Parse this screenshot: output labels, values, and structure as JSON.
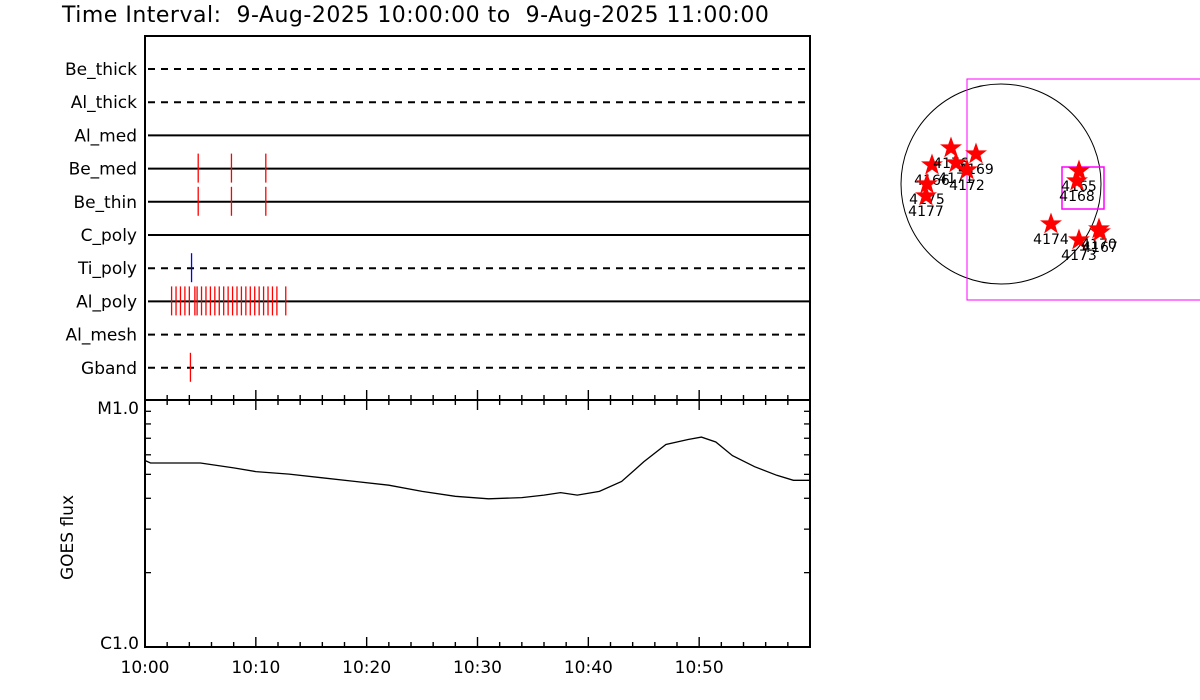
{
  "title": "Time Interval:  9-Aug-2025 10:00:00 to  9-Aug-2025 11:00:00",
  "colors": {
    "axis": "#000000",
    "event_red": "#ff0000",
    "event_blue": "#0000ff",
    "fov_box": "#ff00ff",
    "star": "#ff0000"
  },
  "chart_data": [
    {
      "type": "event-timeline",
      "x_tick_labels": [
        "10:00",
        "10:10",
        "10:20",
        "10:30",
        "10:40",
        "10:50"
      ],
      "x_range_minutes": [
        0,
        60
      ],
      "rows": [
        {
          "name": "Be_thick",
          "line": "dashed",
          "events": []
        },
        {
          "name": "Al_thick",
          "line": "dashed",
          "events": []
        },
        {
          "name": "Al_med",
          "line": "solid",
          "events": []
        },
        {
          "name": "Be_med",
          "line": "solid",
          "events": [
            {
              "t": 4.8,
              "color": "red"
            },
            {
              "t": 7.8,
              "color": "red"
            },
            {
              "t": 10.9,
              "color": "red"
            }
          ]
        },
        {
          "name": "Be_thin",
          "line": "solid",
          "events": [
            {
              "t": 4.8,
              "color": "red"
            },
            {
              "t": 7.8,
              "color": "red"
            },
            {
              "t": 10.9,
              "color": "red"
            }
          ]
        },
        {
          "name": "C_poly",
          "line": "solid",
          "events": []
        },
        {
          "name": "Ti_poly",
          "line": "dashed",
          "events": [
            {
              "t": 4.2,
              "color": "blue"
            }
          ]
        },
        {
          "name": "Al_poly",
          "line": "solid",
          "events": [
            {
              "t": 2.4,
              "color": "red"
            },
            {
              "t": 2.8,
              "color": "red"
            },
            {
              "t": 3.2,
              "color": "red"
            },
            {
              "t": 3.6,
              "color": "red"
            },
            {
              "t": 4.0,
              "color": "red"
            },
            {
              "t": 4.5,
              "color": "red"
            },
            {
              "t": 4.7,
              "color": "red"
            },
            {
              "t": 5.1,
              "color": "red"
            },
            {
              "t": 5.5,
              "color": "red"
            },
            {
              "t": 5.9,
              "color": "red"
            },
            {
              "t": 6.3,
              "color": "red"
            },
            {
              "t": 6.7,
              "color": "red"
            },
            {
              "t": 7.1,
              "color": "red"
            },
            {
              "t": 7.5,
              "color": "red"
            },
            {
              "t": 7.9,
              "color": "red"
            },
            {
              "t": 8.3,
              "color": "red"
            },
            {
              "t": 8.7,
              "color": "red"
            },
            {
              "t": 9.1,
              "color": "red"
            },
            {
              "t": 9.5,
              "color": "red"
            },
            {
              "t": 9.9,
              "color": "red"
            },
            {
              "t": 10.3,
              "color": "red"
            },
            {
              "t": 10.7,
              "color": "red"
            },
            {
              "t": 11.1,
              "color": "red"
            },
            {
              "t": 11.5,
              "color": "red"
            },
            {
              "t": 11.9,
              "color": "red"
            },
            {
              "t": 12.7,
              "color": "red"
            }
          ]
        },
        {
          "name": "Al_mesh",
          "line": "dashed",
          "events": []
        },
        {
          "name": "Gband",
          "line": "dashed",
          "events": [
            {
              "t": 4.1,
              "color": "red"
            }
          ]
        }
      ]
    },
    {
      "type": "line",
      "ylabel": "GOES flux",
      "y_tick_labels": [
        "M1.0",
        "C1.0"
      ],
      "y_scale": "log",
      "y_range_log10_wm2": [
        -6,
        -5
      ],
      "x_tick_labels": [
        "10:00",
        "10:10",
        "10:20",
        "10:30",
        "10:40",
        "10:50"
      ],
      "x_range_minutes": [
        0,
        60
      ],
      "series": [
        {
          "points": [
            [
              0,
              -5.245
            ],
            [
              0.5,
              -5.255
            ],
            [
              5,
              -5.255
            ],
            [
              8,
              -5.275
            ],
            [
              10,
              -5.29
            ],
            [
              13,
              -5.3
            ],
            [
              16,
              -5.315
            ],
            [
              19,
              -5.33
            ],
            [
              22,
              -5.345
            ],
            [
              25,
              -5.37
            ],
            [
              28,
              -5.39
            ],
            [
              31,
              -5.4
            ],
            [
              34,
              -5.395
            ],
            [
              36,
              -5.385
            ],
            [
              37.5,
              -5.375
            ],
            [
              39,
              -5.385
            ],
            [
              41,
              -5.37
            ],
            [
              43,
              -5.33
            ],
            [
              45,
              -5.25
            ],
            [
              47,
              -5.18
            ],
            [
              49,
              -5.16
            ],
            [
              50.2,
              -5.15
            ],
            [
              51.5,
              -5.17
            ],
            [
              53,
              -5.225
            ],
            [
              55,
              -5.27
            ],
            [
              57,
              -5.305
            ],
            [
              58.5,
              -5.325
            ],
            [
              60,
              -5.325
            ]
          ]
        }
      ]
    },
    {
      "type": "scatter",
      "context": "solar disk map with active region markers",
      "points": [
        {
          "label": "4166",
          "x": -0.69,
          "y": 0.19
        },
        {
          "label": "4176",
          "x": -0.5,
          "y": 0.36
        },
        {
          "label": "4171",
          "x": -0.45,
          "y": 0.21
        },
        {
          "label": "4175",
          "x": -0.74,
          "y": 0.0
        },
        {
          "label": "4177",
          "x": -0.75,
          "y": -0.12
        },
        {
          "label": "4169",
          "x": -0.25,
          "y": 0.3
        },
        {
          "label": "4172",
          "x": -0.34,
          "y": 0.14
        },
        {
          "label": "4165",
          "x": 0.78,
          "y": 0.13
        },
        {
          "label": "4168",
          "x": 0.76,
          "y": 0.03
        },
        {
          "label": "4174",
          "x": 0.5,
          "y": -0.4
        },
        {
          "label": "4173",
          "x": 0.78,
          "y": -0.56
        },
        {
          "label": "4170",
          "x": 0.98,
          "y": -0.45
        },
        {
          "label": "4167",
          "x": 0.99,
          "y": -0.48
        }
      ]
    }
  ]
}
